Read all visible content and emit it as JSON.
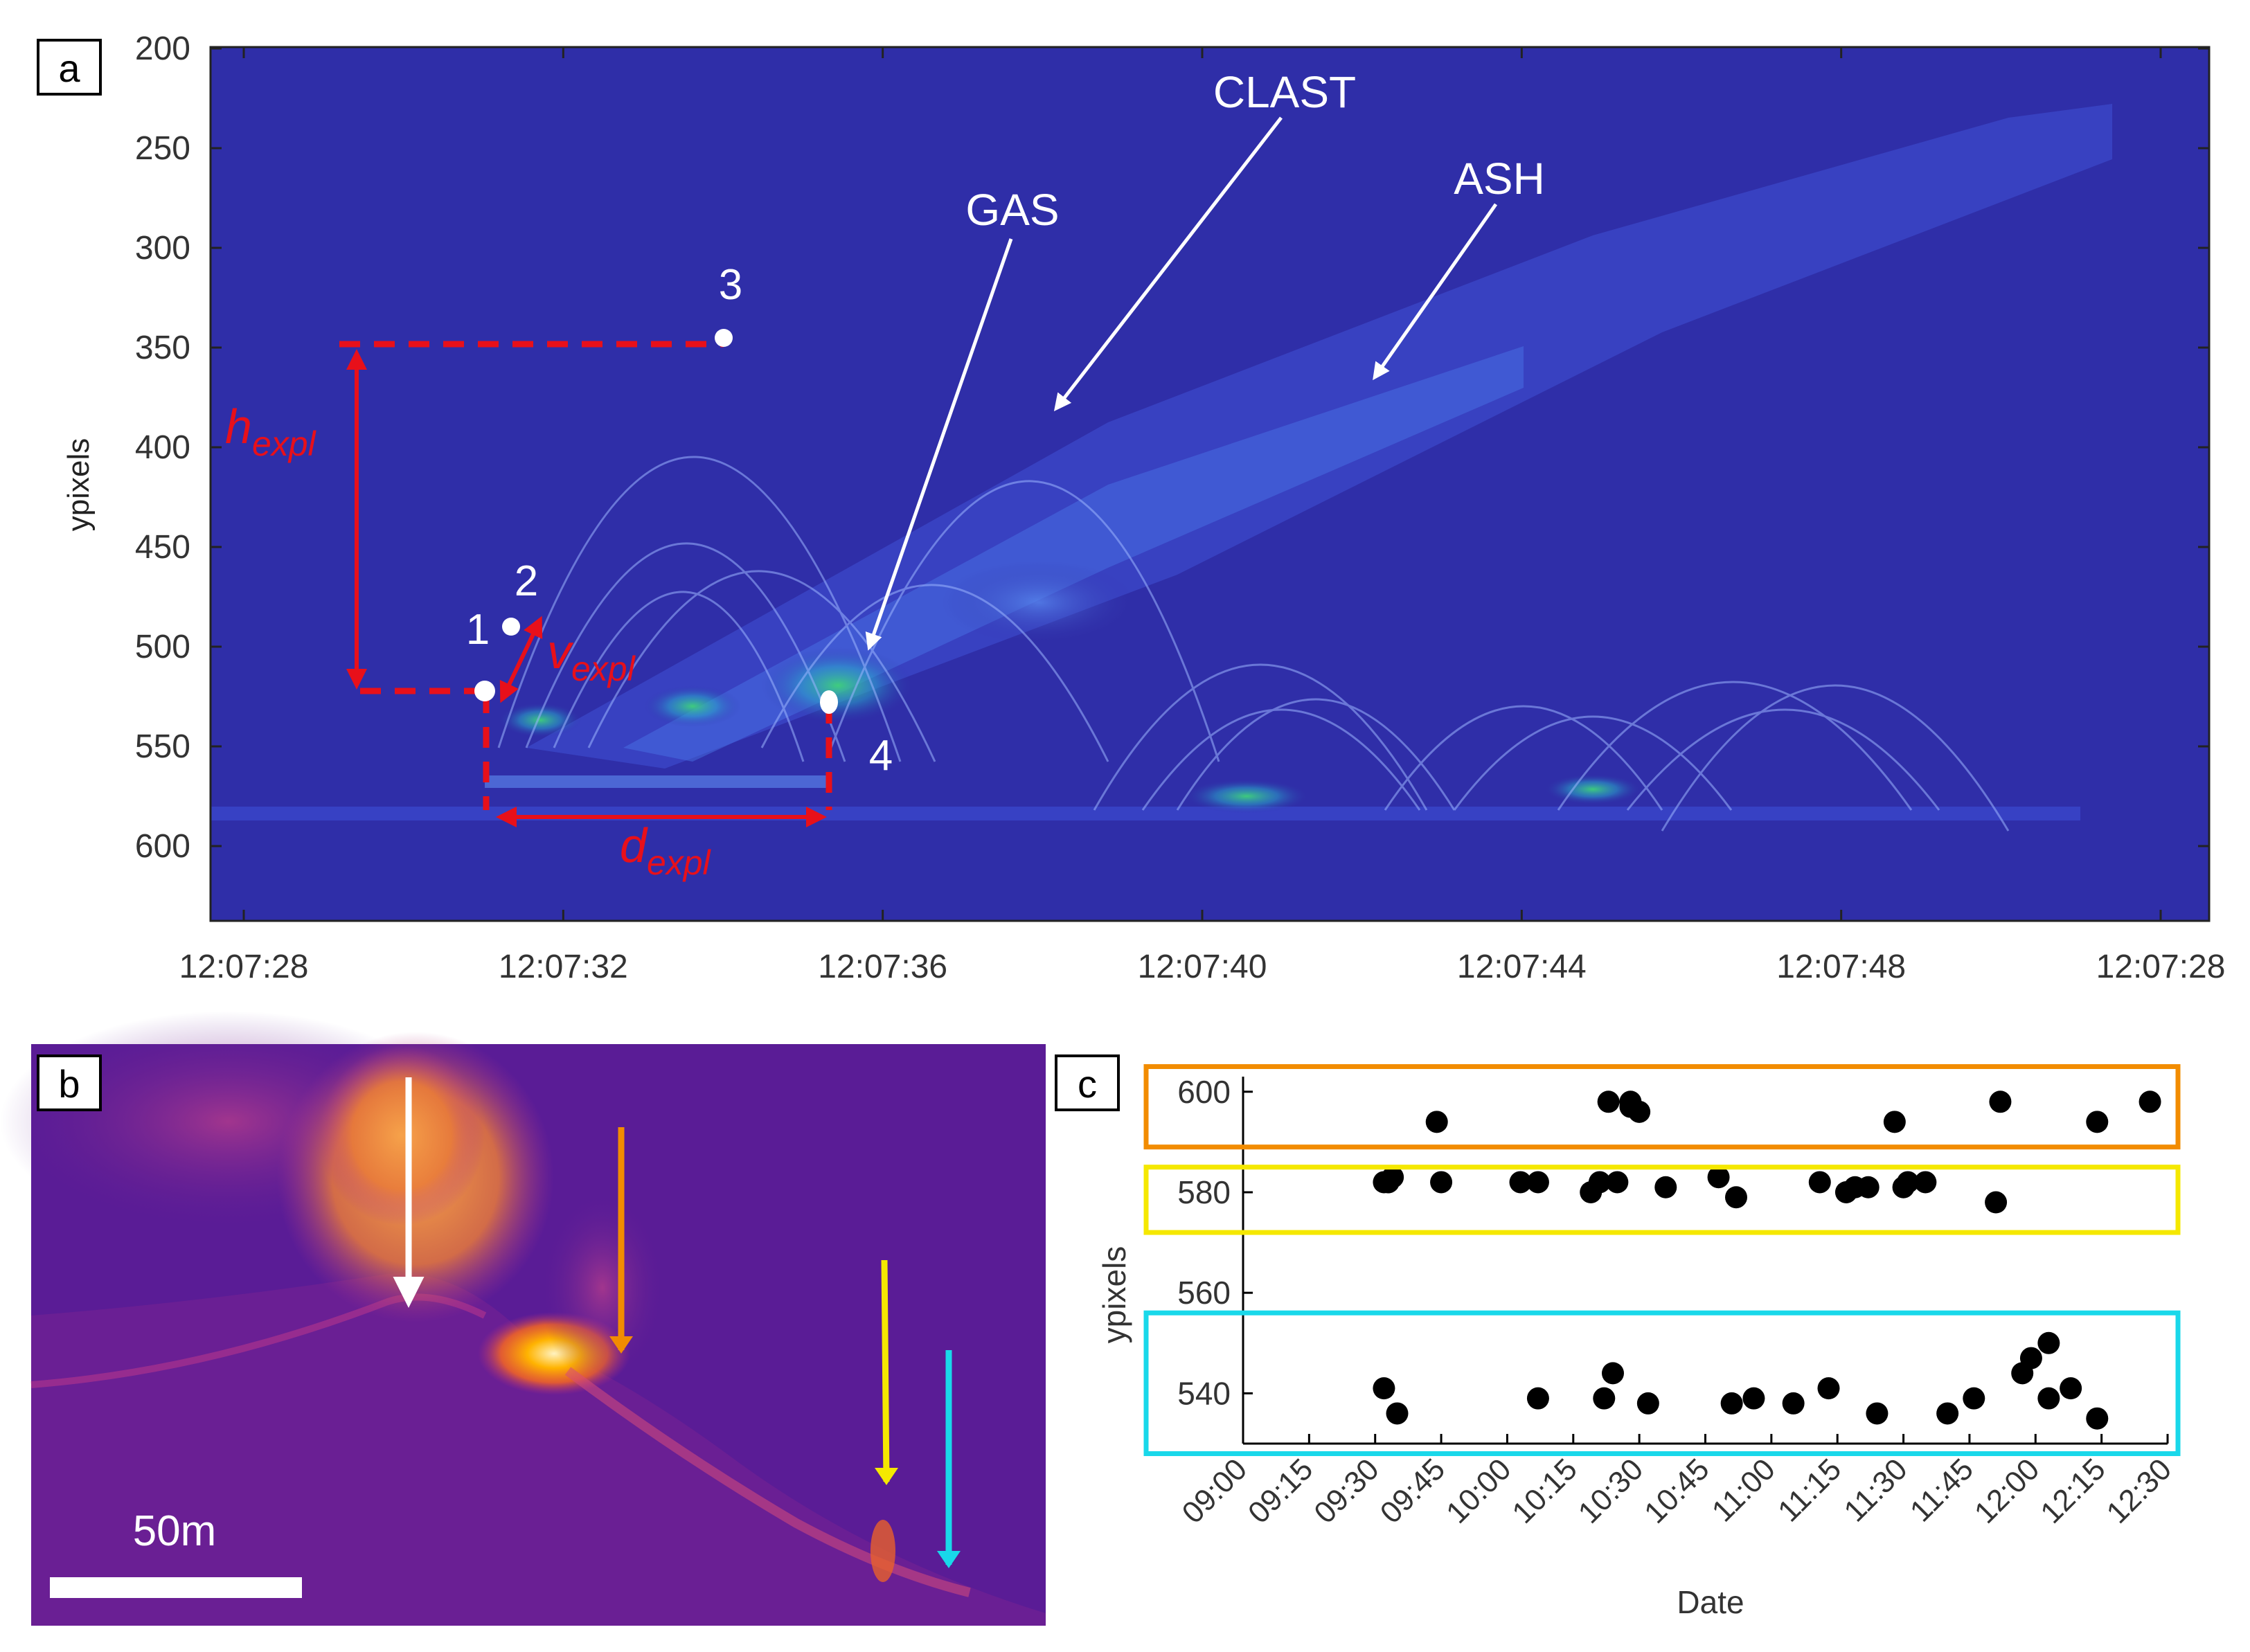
{
  "panel_a": {
    "label": "a",
    "ylabel": "ypixels",
    "yticks": [
      "200",
      "250",
      "300",
      "350",
      "400",
      "450",
      "500",
      "550",
      "600"
    ],
    "xticks": [
      "12:07:28",
      "12:07:32",
      "12:07:36",
      "12:07:40",
      "12:07:44",
      "12:07:48",
      "12:07:28"
    ],
    "annotations": {
      "gas": "GAS",
      "clast": "CLAST",
      "ash": "ASH",
      "p1": "1",
      "p2": "2",
      "p3": "3",
      "p4": "4",
      "h_main": "h",
      "h_sub": "expl",
      "v_main": "v",
      "v_sub": "expl",
      "d_main": "d",
      "d_sub": "expl"
    }
  },
  "panel_b": {
    "label": "b",
    "scale_label": "50m"
  },
  "panel_c": {
    "label": "c"
  },
  "colors": {
    "background_blue": "#2f2ea8",
    "annotation_red": "#e8101a",
    "orange": "#f28c00",
    "yellow": "#f5e800",
    "cyan": "#19d8ea",
    "thermal_bg": "#5a1c96"
  },
  "chart_data": {
    "type": "scatter",
    "title": "",
    "xlabel": "Date",
    "ylabel": "ypixels",
    "x_ticks": [
      "09:00",
      "09:15",
      "09:30",
      "09:45",
      "10:00",
      "10:15",
      "10:30",
      "10:45",
      "11:00",
      "11:15",
      "11:30",
      "11:45",
      "12:00",
      "12:15",
      "12:30"
    ],
    "y_ticks": [
      "540",
      "560",
      "580",
      "600"
    ],
    "xlim_minutes": [
      540,
      750
    ],
    "ylim": [
      530,
      603
    ],
    "x_minutes": [
      572,
      574,
      584,
      603,
      619,
      625,
      628,
      630,
      648,
      679,
      690,
      712,
      746,
      572,
      575,
      607,
      622,
      624,
      632,
      651,
      656,
      665,
      673,
      684,
      700,
      706,
      717,
      723,
      734,
      573,
      573,
      585,
      607,
      621,
      623,
      628,
      636,
      652,
      671,
      677,
      682,
      688,
      691,
      695,
      711,
      719,
      723,
      728,
      734
    ],
    "y": [
      582,
      583,
      594,
      582,
      580,
      582,
      598,
      596,
      583,
      581,
      581,
      598,
      598,
      541,
      536,
      539,
      539,
      544,
      538,
      538,
      539,
      538,
      541,
      536,
      536,
      539,
      544,
      539,
      535,
      582,
      582,
      582,
      582,
      582,
      598,
      597,
      581,
      579,
      582,
      580,
      581,
      594,
      582,
      582,
      578,
      547,
      550,
      541,
      594
    ],
    "bands": [
      {
        "name": "orange",
        "y_range": [
          589,
          605
        ]
      },
      {
        "name": "yellow",
        "y_range": [
          572,
          585
        ]
      },
      {
        "name": "cyan",
        "y_range": [
          528,
          556
        ]
      }
    ]
  }
}
